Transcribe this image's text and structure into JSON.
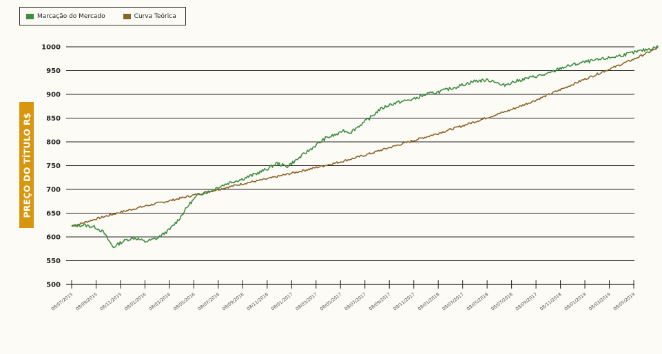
{
  "legend": {
    "market_label": "Marcação do Mercado",
    "theory_label": "Curva Teórica"
  },
  "colors": {
    "market": "#3d8c40",
    "theory": "#8b6428",
    "ylabel_bg": "#d8960f",
    "gridline": "#222222",
    "background": "#fcfbf6"
  },
  "chart_data": {
    "type": "line",
    "ylabel": "PREÇO DO TÍTULO R$",
    "xlabel": "",
    "title": "",
    "ylim": [
      500,
      1000
    ],
    "yticks": [
      500,
      550,
      600,
      650,
      700,
      750,
      800,
      850,
      900,
      950,
      1000
    ],
    "x_tick_labels": [
      "08/07/2015",
      "08/09/2015",
      "08/11/2015",
      "08/01/2016",
      "08/03/2016",
      "08/05/2016",
      "08/07/2016",
      "08/09/2016",
      "08/11/2016",
      "08/01/2017",
      "08/03/2017",
      "08/05/2017",
      "08/07/2017",
      "08/09/2017",
      "08/11/2017",
      "08/01/2018",
      "08/03/2017",
      "08/05/2018",
      "08/07/2018",
      "08/09/2017",
      "08/11/2018",
      "08/01/2019",
      "08/03/2019",
      "08/05/2019"
    ],
    "grid": true,
    "legend_position": "top-left",
    "series": [
      {
        "name": "Marcação do Mercado",
        "x": [
          0,
          0.5,
          1,
          1.3,
          1.7,
          2,
          2.3,
          2.6,
          3,
          3.5,
          4,
          4.4,
          4.8,
          5.2,
          5.6,
          6,
          6.5,
          7,
          7.5,
          8,
          8.4,
          8.8,
          9.2,
          9.6,
          10,
          10.4,
          10.8,
          11,
          11.05,
          11.4,
          11.8,
          12.2,
          12.6,
          13,
          13.5,
          14,
          14.5,
          15,
          15.5,
          16,
          16.5,
          17,
          17.3,
          17.6,
          18,
          18.5,
          19,
          19.5,
          20,
          20.5,
          21,
          21.5,
          22,
          22.5,
          23,
          23.5,
          24
        ],
        "values": [
          623,
          625,
          620,
          610,
          578,
          588,
          595,
          598,
          590,
          597,
          615,
          638,
          668,
          690,
          695,
          705,
          715,
          722,
          732,
          743,
          755,
          748,
          762,
          778,
          793,
          808,
          815,
          818,
          825,
          820,
          835,
          850,
          868,
          878,
          885,
          890,
          900,
          905,
          912,
          920,
          928,
          930,
          928,
          918,
          925,
          932,
          938,
          943,
          955,
          962,
          968,
          972,
          977,
          982,
          988,
          994,
          1000
        ]
      },
      {
        "name": "Curva Teórica",
        "x": [
          0,
          1,
          2,
          3,
          4,
          5,
          6,
          7,
          8,
          9,
          10,
          11,
          12,
          13,
          14,
          15,
          16,
          17,
          18,
          19,
          20,
          21,
          22,
          23,
          24
        ],
        "values": [
          622,
          638,
          652,
          665,
          676,
          688,
          700,
          712,
          722,
          734,
          746,
          758,
          772,
          788,
          803,
          818,
          834,
          851,
          868,
          888,
          910,
          932,
          953,
          974,
          998
        ]
      }
    ]
  }
}
